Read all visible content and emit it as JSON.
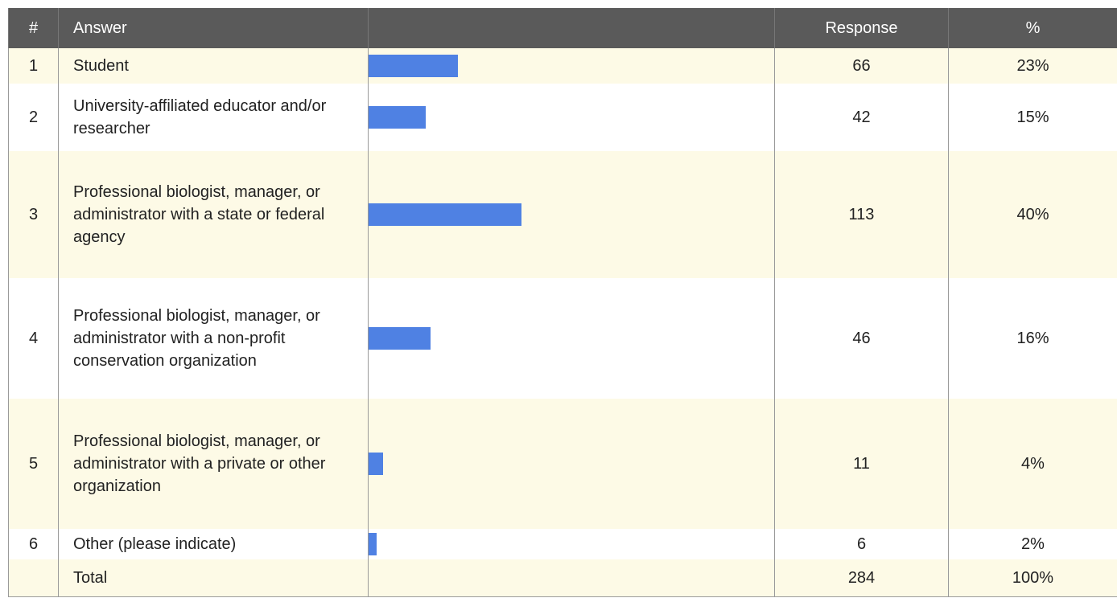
{
  "header": {
    "num": "#",
    "answer": "Answer",
    "response": "Response",
    "percent": "%"
  },
  "rows": [
    {
      "num": "1",
      "answer": "Student",
      "response": 66,
      "percent": "23%"
    },
    {
      "num": "2",
      "answer": "University-affiliated educator and/or researcher",
      "response": 42,
      "percent": "15%"
    },
    {
      "num": "3",
      "answer": "Professional biologist, manager, or administrator with a state or federal agency",
      "response": 113,
      "percent": "40%"
    },
    {
      "num": "4",
      "answer": "Professional biologist, manager, or administrator with a non-profit conservation organization",
      "response": 46,
      "percent": "16%"
    },
    {
      "num": "5",
      "answer": "Professional biologist, manager, or administrator with a private or other organization",
      "response": 11,
      "percent": "4%"
    },
    {
      "num": "6",
      "answer": "Other (please indicate)",
      "response": 6,
      "percent": "2%"
    }
  ],
  "total": {
    "answer": "Total",
    "response": 284,
    "percent": "100%"
  }
}
